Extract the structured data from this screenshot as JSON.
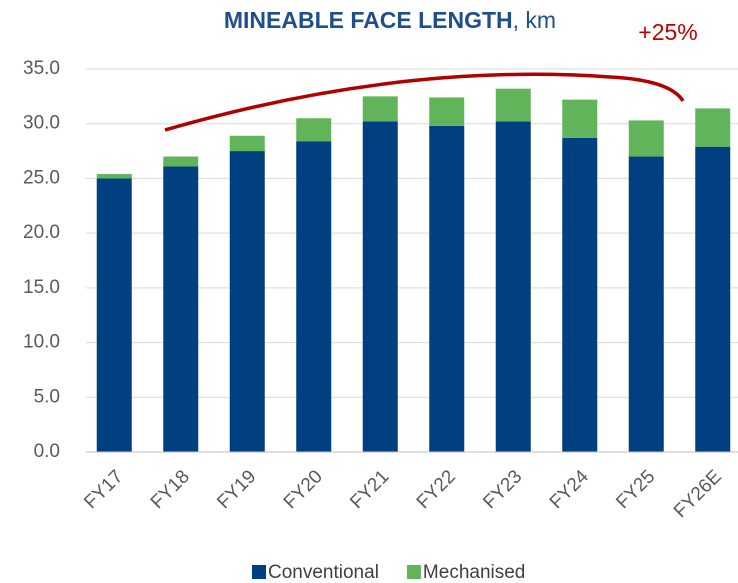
{
  "chart_data": {
    "type": "stacked_bar",
    "title": [
      "MINEABLE FACE LENGTH",
      ", km"
    ],
    "annotation": "+25%",
    "categories": [
      "FY17",
      "FY18",
      "FY19",
      "FY20",
      "FY21",
      "FY22",
      "FY23",
      "FY24",
      "FY25",
      "FY26E"
    ],
    "series": [
      {
        "name": "Conventional",
        "color": "#003f80",
        "values": [
          25.0,
          26.1,
          27.5,
          28.4,
          30.2,
          29.8,
          30.2,
          28.7,
          27.0,
          27.9
        ]
      },
      {
        "name": "Mechanised",
        "color": "#62b45a",
        "values": [
          0.4,
          0.9,
          1.4,
          2.1,
          2.3,
          2.6,
          3.0,
          3.5,
          3.3,
          3.5
        ]
      }
    ],
    "ylim": [
      0,
      35
    ],
    "yticks": [
      {
        "value": 0,
        "label": "0.0"
      },
      {
        "value": 5,
        "label": "5.0"
      },
      {
        "value": 10,
        "label": "10.0"
      },
      {
        "value": 15,
        "label": "15.0"
      },
      {
        "value": 20,
        "label": "20.0"
      },
      {
        "value": 25,
        "label": "25.0"
      },
      {
        "value": 30,
        "label": "30.0"
      },
      {
        "value": 35,
        "label": "35.0"
      }
    ],
    "grid": true,
    "legend": "bottom"
  }
}
